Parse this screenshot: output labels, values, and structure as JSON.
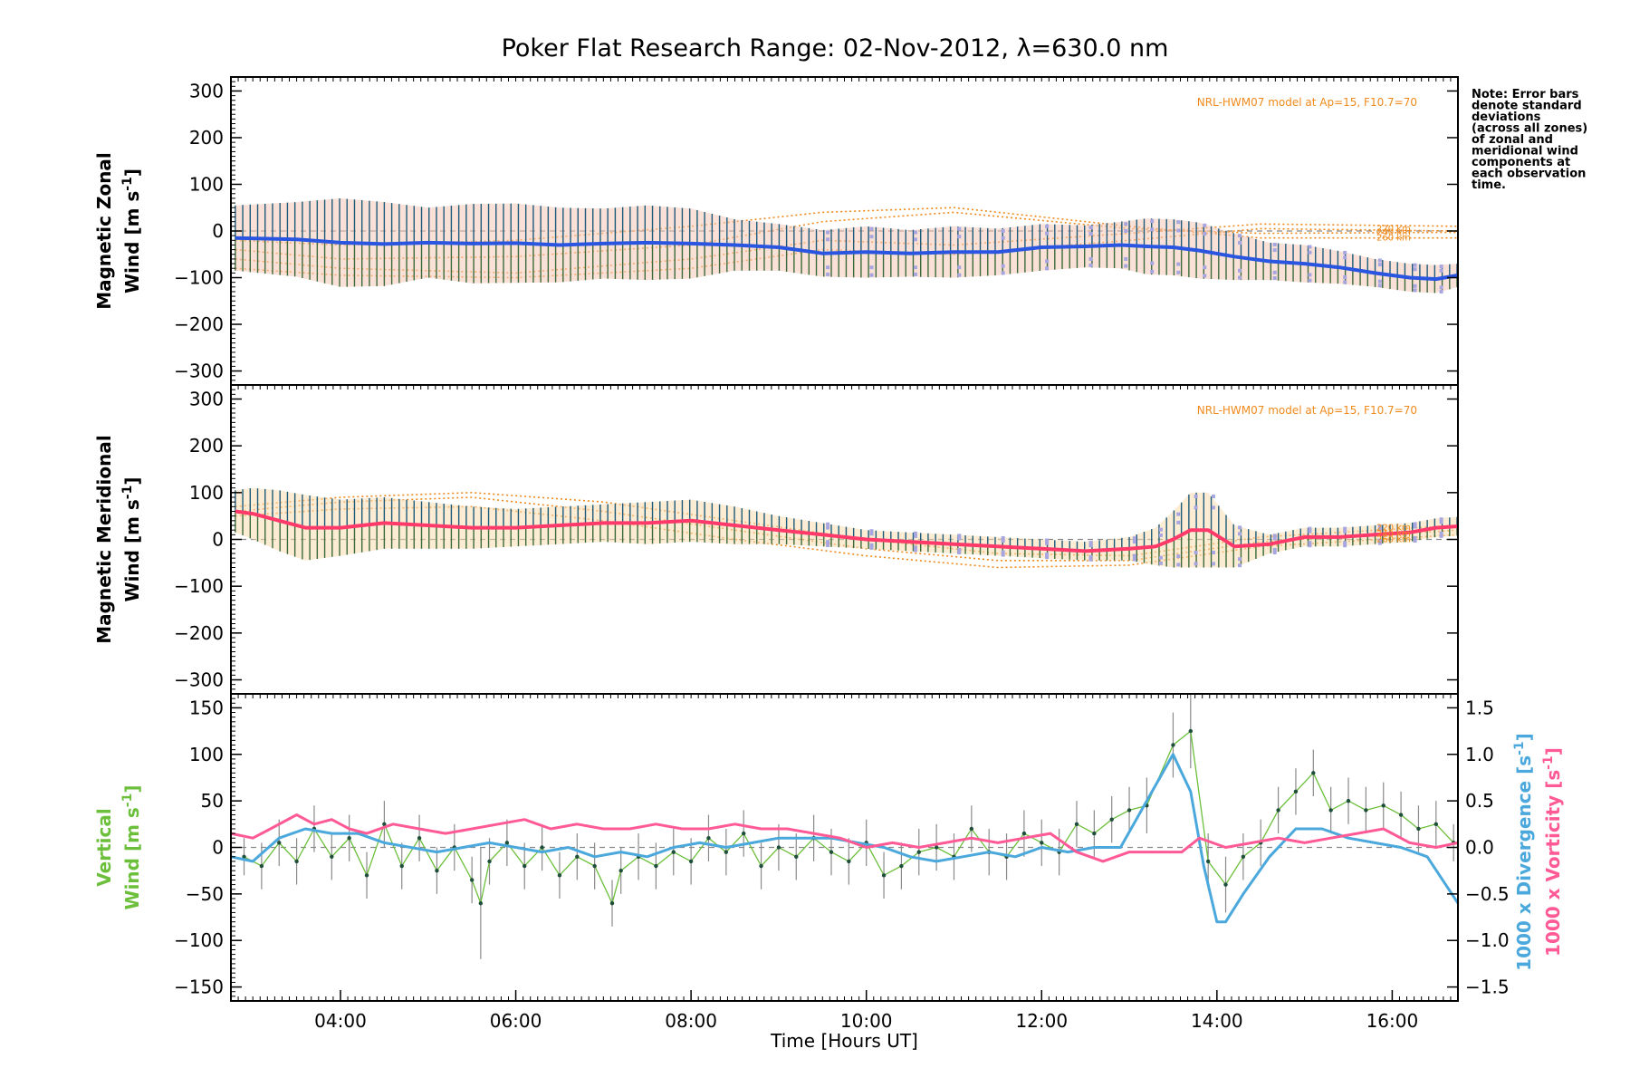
{
  "title": "Poker Flat Research Range: 02-Nov-2012, λ=630.0 nm",
  "note": [
    "Note: Error bars",
    "denote standard",
    "deviations",
    "(across all zones)",
    "of zonal and",
    "meridional wind",
    "components at",
    "each observation",
    "time."
  ],
  "colors": {
    "zonal": "#2a55e0",
    "zonal_light": "#5aa6e6",
    "meridional": "#ff3a6a",
    "meridional_light": "#ff6a9a",
    "vertical": "#6cbf3b",
    "divergence": "#4aa8dc",
    "vorticity": "#ff5a95",
    "model": "#f08a1c",
    "scatter": "#a8a6e0"
  },
  "chart_data": [
    {
      "id": "zonal",
      "type": "line",
      "ylabel_line1": "Magnetic Zonal",
      "ylabel_line2": "Wind [m s",
      "ylabel_sup": "-1",
      "ylabel_end": "]",
      "ylim": [
        -330,
        330
      ],
      "yticks": [
        -300,
        -200,
        -100,
        0,
        100,
        200,
        300
      ],
      "model_label": "NRL-HWM07 model at Ap=15, F10.7=70",
      "alt_labels": [
        "220 km",
        "240 km",
        "260 km"
      ],
      "alt_values": [
        5,
        -3,
        -15
      ],
      "series": [
        {
          "x": [
            2.8,
            3.5,
            4.0,
            4.5,
            5.0,
            5.5,
            6.0,
            6.5,
            7.0,
            7.5,
            8.0,
            8.5,
            9.0,
            9.5,
            10.0,
            10.5,
            11.0,
            11.5,
            12.0,
            12.5,
            12.9,
            13.2,
            13.5,
            13.8,
            14.2,
            14.6,
            15.0,
            15.4,
            15.8,
            16.2,
            16.5,
            16.75
          ],
          "y": [
            -15,
            -18,
            -25,
            -28,
            -25,
            -27,
            -26,
            -30,
            -27,
            -25,
            -27,
            -30,
            -35,
            -48,
            -45,
            -48,
            -45,
            -45,
            -35,
            -33,
            -30,
            -33,
            -35,
            -42,
            -55,
            -65,
            -70,
            -78,
            -90,
            -100,
            -103,
            -95
          ],
          "err": [
            70,
            80,
            95,
            90,
            75,
            85,
            85,
            80,
            75,
            80,
            75,
            55,
            50,
            50,
            55,
            50,
            55,
            50,
            50,
            45,
            50,
            60,
            60,
            60,
            50,
            40,
            40,
            35,
            30,
            30,
            30,
            25
          ]
        }
      ],
      "model": [
        {
          "x": [
            2.8,
            4,
            6,
            8,
            9.5,
            11,
            13,
            14.5,
            16.75
          ],
          "y": [
            -60,
            -80,
            -90,
            -60,
            -20,
            -30,
            -5,
            15,
            10
          ]
        },
        {
          "x": [
            2.8,
            4,
            6,
            8,
            9.5,
            11,
            13,
            14.5,
            16.75
          ],
          "y": [
            -40,
            -60,
            -55,
            -30,
            20,
            40,
            5,
            -5,
            -3
          ]
        },
        {
          "x": [
            2.8,
            4,
            6,
            8,
            9.5,
            11,
            13,
            14.5,
            16.75
          ],
          "y": [
            -20,
            -30,
            -20,
            10,
            40,
            50,
            10,
            -15,
            -15
          ]
        },
        {
          "x": [
            2.8,
            4,
            6,
            8,
            9.5,
            11,
            13,
            14.5,
            16.75
          ],
          "y": [
            -80,
            -95,
            -100,
            -80,
            -40,
            -50,
            -20,
            5,
            0
          ]
        }
      ]
    },
    {
      "id": "meridional",
      "type": "line",
      "ylabel_line1": "Magnetic Meridional",
      "ylabel_line2": "Wind [m s",
      "ylabel_sup": "-1",
      "ylabel_end": "]",
      "ylim": [
        -330,
        330
      ],
      "yticks": [
        -300,
        -200,
        -100,
        0,
        100,
        200,
        300
      ],
      "model_label": "NRL-HWM07 model at Ap=15, F10.7=70",
      "alt_labels": [
        "220 km",
        "240 km",
        "260 km"
      ],
      "alt_values": [
        25,
        12,
        0
      ],
      "series": [
        {
          "x": [
            2.8,
            3.0,
            3.3,
            3.6,
            4.0,
            4.5,
            5.0,
            5.5,
            6.0,
            6.5,
            7.0,
            7.5,
            8.0,
            8.5,
            9.0,
            9.5,
            10.0,
            10.5,
            11.0,
            11.5,
            12.0,
            12.5,
            13.0,
            13.3,
            13.5,
            13.7,
            13.9,
            14.2,
            14.6,
            15.0,
            15.4,
            15.8,
            16.2,
            16.5,
            16.75
          ],
          "y": [
            60,
            55,
            40,
            25,
            25,
            35,
            30,
            25,
            25,
            30,
            35,
            35,
            40,
            30,
            20,
            10,
            0,
            -5,
            -10,
            -15,
            -20,
            -25,
            -20,
            -15,
            0,
            20,
            20,
            -15,
            -10,
            5,
            5,
            10,
            15,
            25,
            28
          ],
          "err": [
            45,
            55,
            65,
            70,
            60,
            55,
            50,
            45,
            40,
            40,
            40,
            45,
            45,
            40,
            30,
            25,
            20,
            20,
            20,
            20,
            20,
            20,
            25,
            40,
            60,
            80,
            80,
            45,
            20,
            20,
            20,
            20,
            20,
            20,
            20
          ]
        }
      ],
      "model": [
        {
          "x": [
            2.8,
            4,
            5.5,
            7,
            8.5,
            10,
            11.5,
            13,
            14.5,
            16.75
          ],
          "y": [
            70,
            90,
            100,
            80,
            40,
            0,
            -30,
            -35,
            5,
            30
          ]
        },
        {
          "x": [
            2.8,
            4,
            5.5,
            7,
            8.5,
            10,
            11.5,
            13,
            14.5,
            16.75
          ],
          "y": [
            60,
            80,
            90,
            60,
            20,
            -20,
            -45,
            -45,
            -5,
            20
          ]
        },
        {
          "x": [
            2.8,
            4,
            5.5,
            7,
            8.5,
            10,
            11.5,
            13,
            14.5,
            16.75
          ],
          "y": [
            50,
            65,
            70,
            40,
            0,
            -35,
            -60,
            -55,
            -15,
            10
          ]
        }
      ]
    },
    {
      "id": "vertical",
      "type": "line",
      "ylabel_line1": "Vertical",
      "ylabel_line2": "Wind [m s",
      "ylabel_sup": "-1",
      "ylabel_end": "]",
      "y2label_div": "1000 x Divergence [s",
      "y2label_vor": "1000 x Vorticity [s",
      "y2label_sup": "-1",
      "y2label_end": "]",
      "ylim": [
        -165,
        165
      ],
      "yticks": [
        -150,
        -100,
        -50,
        0,
        50,
        100,
        150
      ],
      "y2lim": [
        -1.65,
        1.65
      ],
      "y2ticks": [
        -1.5,
        -1.0,
        -0.5,
        0.0,
        0.5,
        1.0,
        1.5
      ],
      "y2ticklabels": [
        "−1.5",
        "−1.0",
        "−0.5",
        "0.0",
        "0.5",
        "1.0",
        "1.5"
      ],
      "xlabel": "Time [Hours UT]",
      "xlim": [
        2.75,
        16.75
      ],
      "xticks": [
        4,
        6,
        8,
        10,
        12,
        14,
        16
      ],
      "xticklabels": [
        "04:00",
        "06:00",
        "08:00",
        "10:00",
        "12:00",
        "14:00",
        "16:00"
      ],
      "series": [
        {
          "name": "vertical_wind",
          "x": [
            2.9,
            3.1,
            3.3,
            3.5,
            3.7,
            3.9,
            4.1,
            4.3,
            4.5,
            4.7,
            4.9,
            5.1,
            5.3,
            5.5,
            5.6,
            5.7,
            5.9,
            6.1,
            6.3,
            6.5,
            6.7,
            6.9,
            7.1,
            7.2,
            7.4,
            7.6,
            7.8,
            8.0,
            8.2,
            8.4,
            8.6,
            8.8,
            9.0,
            9.2,
            9.4,
            9.6,
            9.8,
            10.0,
            10.2,
            10.4,
            10.6,
            10.8,
            11.0,
            11.2,
            11.4,
            11.6,
            11.8,
            12.0,
            12.2,
            12.4,
            12.6,
            12.8,
            13.0,
            13.2,
            13.5,
            13.7,
            13.9,
            14.1,
            14.3,
            14.5,
            14.7,
            14.9,
            15.1,
            15.3,
            15.5,
            15.7,
            15.9,
            16.1,
            16.3,
            16.5,
            16.7
          ],
          "y": [
            -10,
            -20,
            5,
            -15,
            20,
            -10,
            10,
            -30,
            25,
            -20,
            10,
            -25,
            0,
            -35,
            -60,
            -15,
            5,
            -20,
            0,
            -30,
            -10,
            -20,
            -60,
            -25,
            -10,
            -20,
            -5,
            -15,
            10,
            -5,
            15,
            -20,
            0,
            -10,
            10,
            -5,
            -15,
            5,
            -30,
            -20,
            -5,
            0,
            -10,
            20,
            -5,
            -10,
            15,
            5,
            -5,
            25,
            15,
            30,
            40,
            45,
            110,
            125,
            -15,
            -40,
            -10,
            5,
            40,
            60,
            80,
            40,
            50,
            40,
            45,
            35,
            20,
            25,
            5
          ],
          "err": [
            20,
            25,
            25,
            25,
            25,
            25,
            25,
            25,
            25,
            25,
            25,
            25,
            25,
            25,
            60,
            25,
            25,
            25,
            25,
            25,
            25,
            25,
            25,
            25,
            25,
            25,
            25,
            25,
            25,
            25,
            25,
            25,
            25,
            25,
            25,
            25,
            25,
            25,
            25,
            25,
            25,
            25,
            25,
            25,
            25,
            25,
            25,
            25,
            25,
            25,
            25,
            25,
            25,
            30,
            35,
            40,
            30,
            30,
            25,
            25,
            25,
            25,
            25,
            25,
            25,
            25,
            25,
            25,
            25,
            25,
            20
          ]
        },
        {
          "name": "divergence",
          "x": [
            2.75,
            3.0,
            3.3,
            3.6,
            3.9,
            4.2,
            4.5,
            4.8,
            5.1,
            5.4,
            5.7,
            6.0,
            6.3,
            6.6,
            6.9,
            7.2,
            7.5,
            7.8,
            8.1,
            8.4,
            8.7,
            9.0,
            9.3,
            9.6,
            9.9,
            10.2,
            10.5,
            10.8,
            11.1,
            11.4,
            11.7,
            12.0,
            12.3,
            12.6,
            12.9,
            13.2,
            13.5,
            13.7,
            13.85,
            14.0,
            14.1,
            14.3,
            14.6,
            14.9,
            15.2,
            15.5,
            15.8,
            16.1,
            16.4,
            16.75
          ],
          "y": [
            -0.1,
            -0.15,
            0.1,
            0.2,
            0.15,
            0.15,
            0.05,
            0.0,
            -0.05,
            0.0,
            0.05,
            0.0,
            -0.05,
            0.0,
            -0.1,
            -0.05,
            -0.1,
            0.0,
            0.05,
            0.0,
            0.05,
            0.1,
            0.1,
            0.1,
            0.05,
            0.0,
            -0.1,
            -0.15,
            -0.1,
            -0.05,
            -0.1,
            0.0,
            -0.05,
            0.0,
            0.0,
            0.5,
            1.0,
            0.6,
            -0.2,
            -0.8,
            -0.8,
            -0.5,
            -0.1,
            0.2,
            0.2,
            0.1,
            0.05,
            0.0,
            -0.1,
            -0.6
          ]
        },
        {
          "name": "vorticity",
          "x": [
            2.75,
            3.0,
            3.2,
            3.5,
            3.7,
            3.9,
            4.1,
            4.3,
            4.6,
            4.9,
            5.2,
            5.5,
            5.8,
            6.1,
            6.4,
            6.7,
            7.0,
            7.3,
            7.6,
            7.9,
            8.2,
            8.5,
            8.8,
            9.1,
            9.4,
            9.7,
            10.0,
            10.3,
            10.6,
            10.9,
            11.2,
            11.5,
            11.8,
            12.1,
            12.4,
            12.7,
            13.0,
            13.3,
            13.6,
            13.8,
            14.1,
            14.4,
            14.7,
            15.0,
            15.3,
            15.6,
            15.9,
            16.2,
            16.5,
            16.75
          ],
          "y": [
            0.15,
            0.1,
            0.2,
            0.35,
            0.25,
            0.3,
            0.2,
            0.15,
            0.25,
            0.2,
            0.15,
            0.2,
            0.25,
            0.3,
            0.2,
            0.25,
            0.2,
            0.2,
            0.25,
            0.2,
            0.2,
            0.25,
            0.2,
            0.2,
            0.15,
            0.1,
            0.0,
            0.05,
            0.0,
            0.05,
            0.1,
            0.05,
            0.1,
            0.15,
            -0.05,
            -0.15,
            -0.05,
            -0.05,
            -0.05,
            0.1,
            0.0,
            0.05,
            0.1,
            0.05,
            0.1,
            0.15,
            0.2,
            0.05,
            0.0,
            0.05
          ]
        }
      ]
    }
  ]
}
